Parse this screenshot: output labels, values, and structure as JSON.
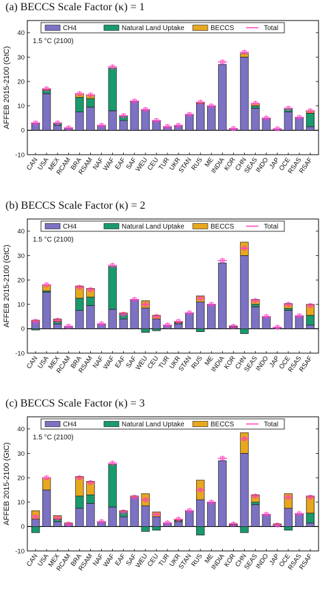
{
  "figure": {
    "ylabel": "AFFEB 2015-2100 (GtC)",
    "legend": [
      "CH4",
      "Natural Land Uptake",
      "BECCS",
      "Total"
    ],
    "annotation": "1.5 °C (2100)"
  },
  "colors": {
    "ch4": "#7b72c4",
    "natural_land_uptake": "#1a9a6c",
    "beccs": "#e8a81e",
    "total": "#ff3cbe"
  },
  "chart_data": [
    {
      "type": "bar",
      "title": "(a) BECCS Scale Factor (κ) = 1",
      "ylabel": "AFFEB 2015-2100 (GtC)",
      "ylim": [
        -10,
        45
      ],
      "yticks": [
        -10,
        0,
        10,
        20,
        30,
        40
      ],
      "legend": "top",
      "grid": false,
      "categories": [
        "CAN",
        "USA",
        "MEX",
        "RCAM",
        "BRA",
        "RSAM",
        "NAF",
        "WAF",
        "EAF",
        "SAF",
        "WEU",
        "CEU",
        "TUR",
        "UKR",
        "STAN",
        "RUS",
        "ME",
        "INDIA",
        "KOR",
        "CHN",
        "SEAS",
        "INDO",
        "JAP",
        "OCE",
        "RSAS",
        "RSAF"
      ],
      "series": [
        {
          "name": "CH4",
          "values": [
            3,
            15,
            2,
            1,
            7.5,
            9.5,
            2,
            8,
            4,
            12,
            8.5,
            4,
            1.5,
            2,
            6.5,
            11,
            10,
            27,
            0.7,
            30,
            9,
            5,
            0.6,
            7.5,
            5.3,
            1.5
          ]
        },
        {
          "name": "Natural Land Uptake",
          "values": [
            0,
            1.5,
            1,
            0,
            6,
            3.5,
            0,
            17.5,
            2,
            0,
            0,
            0,
            0,
            0,
            0,
            0,
            0,
            0,
            0,
            0,
            1,
            0,
            0,
            1.5,
            0,
            5.5
          ]
        },
        {
          "name": "BECCS",
          "values": [
            0,
            0.5,
            0,
            0,
            1.5,
            1.5,
            0,
            0,
            0,
            0,
            0,
            0,
            0,
            0,
            0,
            0.5,
            0,
            0,
            0,
            1.5,
            1,
            0,
            0,
            0,
            0,
            1
          ]
        },
        {
          "name": "Total",
          "values": [
            3,
            17,
            3,
            1,
            15,
            14.5,
            2,
            26,
            6,
            12,
            8.5,
            4,
            1.5,
            2,
            6.5,
            11.5,
            10,
            28,
            0.7,
            32,
            11,
            5,
            0.6,
            9,
            5.3,
            8
          ]
        }
      ]
    },
    {
      "type": "bar",
      "title": "(b) BECCS Scale Factor (κ) = 2",
      "ylabel": "AFFEB 2015-2100 (GtC)",
      "ylim": [
        -10,
        45
      ],
      "yticks": [
        -10,
        0,
        10,
        20,
        30,
        40
      ],
      "legend": "top",
      "grid": false,
      "categories": [
        "CAN",
        "USA",
        "MEX",
        "RCAM",
        "BRA",
        "RSAM",
        "NAF",
        "WAF",
        "EAF",
        "SAF",
        "WEU",
        "CEU",
        "TUR",
        "UKR",
        "STAN",
        "RUS",
        "ME",
        "INDIA",
        "KOR",
        "CHN",
        "SEAS",
        "INDO",
        "JAP",
        "OCE",
        "RSAS",
        "RSAF"
      ],
      "series": [
        {
          "name": "CH4",
          "values": [
            3,
            15,
            2,
            1,
            7.5,
            9.5,
            2,
            8,
            4,
            12,
            8.5,
            4,
            1.5,
            2,
            6.5,
            11,
            10,
            27,
            0.7,
            30,
            9,
            5,
            0.6,
            7.5,
            5.3,
            1.5
          ]
        },
        {
          "name": "Natural Land Uptake",
          "values": [
            -0.5,
            0.5,
            1,
            0,
            5,
            3.5,
            0,
            17.5,
            2,
            0,
            -1.5,
            -0.8,
            0,
            0.5,
            0,
            -1.2,
            0,
            0,
            0,
            -2,
            1,
            0,
            0,
            0.8,
            0,
            4
          ]
        },
        {
          "name": "BECCS",
          "values": [
            0.5,
            2.5,
            1,
            0,
            5,
            3.5,
            0,
            0,
            0.5,
            0,
            3,
            1.5,
            0,
            0.5,
            0,
            2.5,
            0,
            0,
            0.5,
            5.5,
            2,
            0,
            0,
            2,
            0,
            4.5
          ]
        },
        {
          "name": "Total",
          "values": [
            3,
            18,
            3.5,
            1,
            17,
            16,
            2,
            26,
            6,
            12,
            10,
            5,
            1.5,
            3,
            6.5,
            12.5,
            10,
            28,
            1,
            33,
            11.5,
            5,
            0.6,
            10,
            5.3,
            9.5
          ]
        }
      ]
    },
    {
      "type": "bar",
      "title": "(c) BECCS Scale Factor (κ) = 3",
      "ylabel": "AFFEB 2015-2100 (GtC)",
      "ylim": [
        -10,
        45
      ],
      "yticks": [
        -10,
        0,
        10,
        20,
        30,
        40
      ],
      "legend": "top",
      "grid": false,
      "categories": [
        "CAN",
        "USA",
        "MEX",
        "RCAM",
        "BRA",
        "RSAM",
        "NAF",
        "WAF",
        "EAF",
        "SAF",
        "WEU",
        "CEU",
        "TUR",
        "UKR",
        "STAN",
        "RUS",
        "ME",
        "INDIA",
        "KOR",
        "CHN",
        "SEAS",
        "INDO",
        "JAP",
        "OCE",
        "RSAS",
        "RSAF"
      ],
      "series": [
        {
          "name": "CH4",
          "values": [
            3,
            15,
            2,
            1,
            7.5,
            9.5,
            2,
            8,
            4,
            12,
            8.5,
            4,
            1.5,
            2,
            6.5,
            11,
            10,
            27,
            0.7,
            30,
            9,
            5,
            0.6,
            7.5,
            5.3,
            1.5
          ]
        },
        {
          "name": "Natural Land Uptake",
          "values": [
            -2.5,
            0,
            1,
            0,
            5,
            3.5,
            0,
            17.5,
            2,
            0,
            -2,
            -1.5,
            0,
            0.5,
            0,
            -3.5,
            0,
            0,
            0,
            -2.5,
            1,
            0,
            0,
            -1.5,
            0,
            4
          ]
        },
        {
          "name": "BECCS",
          "values": [
            3.5,
            5,
            1.5,
            0.5,
            8,
            5.5,
            0,
            0,
            0.5,
            0.5,
            5,
            2,
            0,
            0.5,
            0,
            8,
            0,
            0,
            0.5,
            8.5,
            3,
            0,
            0.5,
            6,
            0,
            7
          ]
        },
        {
          "name": "Total",
          "values": [
            4,
            20,
            3.5,
            1,
            20,
            18,
            2,
            26,
            6,
            12,
            11,
            5,
            1.5,
            3,
            6.5,
            15,
            10,
            28,
            1,
            36,
            12.5,
            5,
            0.6,
            12,
            5.3,
            12
          ]
        }
      ]
    }
  ]
}
